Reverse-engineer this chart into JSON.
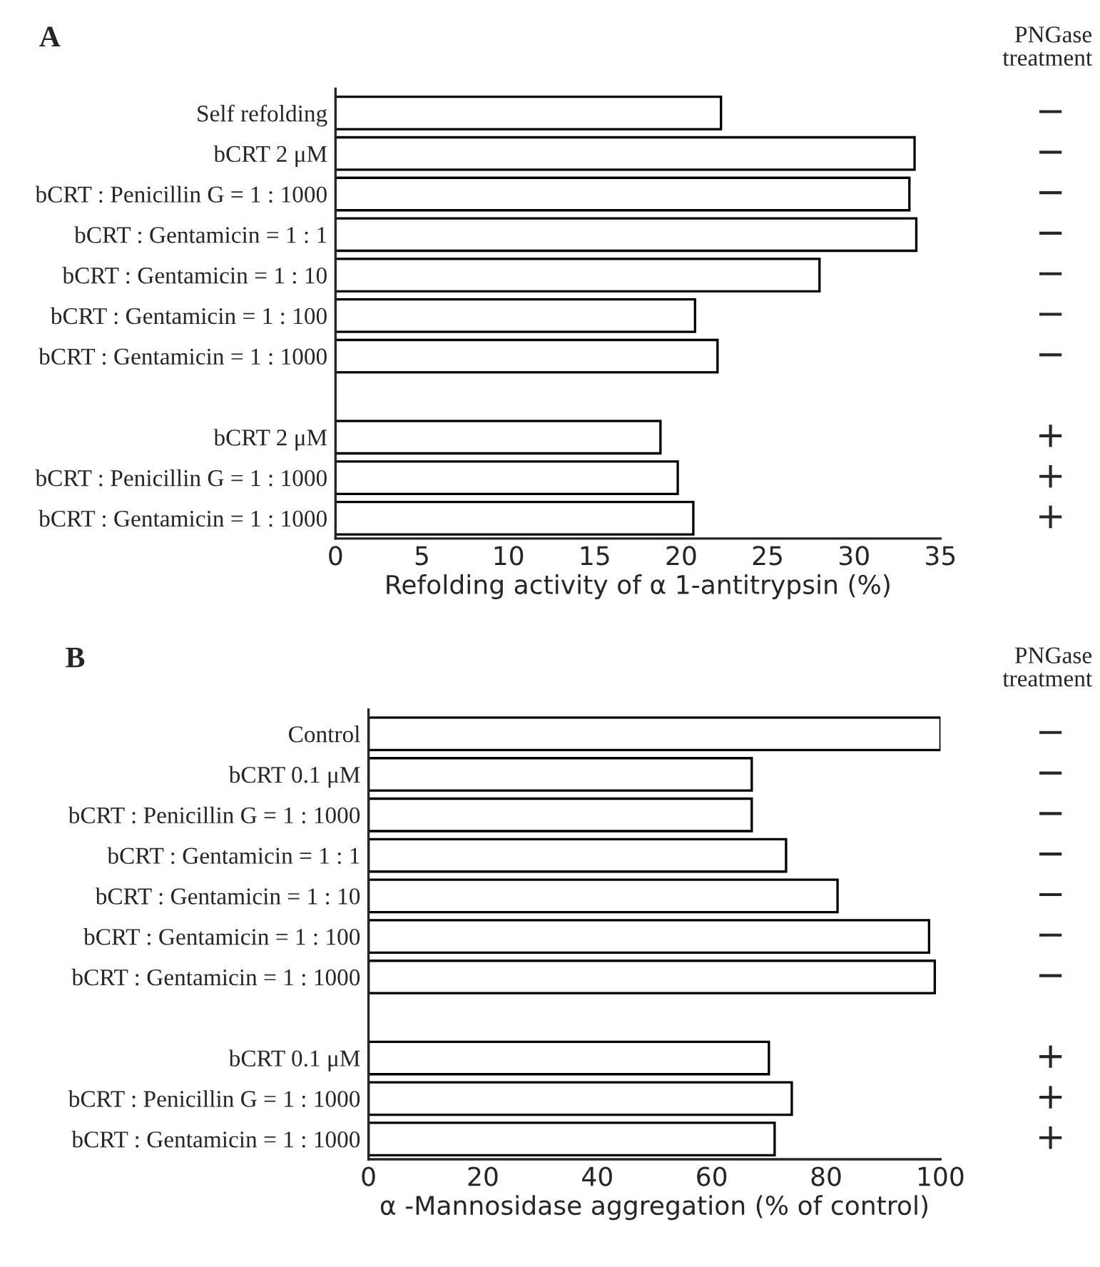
{
  "chart_data": [
    {
      "type": "bar",
      "orientation": "horizontal",
      "title": "A",
      "xlabel": "Refolding activity of α 1-antitrypsin (%)",
      "categories": [
        "Self refolding",
        "bCRT 2 μM",
        "bCRT : Penicillin G = 1 : 1000",
        "bCRT : Gentamicin = 1 : 1",
        "bCRT : Gentamicin = 1 : 10",
        "bCRT : Gentamicin = 1 : 100",
        "bCRT : Gentamicin = 1 : 1000",
        null,
        "bCRT 2 μM",
        "bCRT : Penicillin G = 1 : 1000",
        "bCRT : Gentamicin = 1 : 1000"
      ],
      "values": [
        22.3,
        33.5,
        33.2,
        33.6,
        28.0,
        20.8,
        22.1,
        null,
        18.8,
        19.8,
        20.7
      ],
      "color": "#ffffff",
      "xlim": [
        0,
        35
      ],
      "xticks": [
        0,
        5,
        10,
        15,
        20,
        25,
        30,
        35
      ],
      "grid": false,
      "legend": false,
      "annotations": [
        "PNGase\ntreatment",
        "−",
        "−",
        "−",
        "−",
        "−",
        "−",
        "−",
        "+",
        "+",
        "+"
      ]
    },
    {
      "type": "bar",
      "orientation": "horizontal",
      "title": "B",
      "xlabel": "α -Mannosidase aggregation (% of control)",
      "categories": [
        "Control",
        "bCRT 0.1 μM",
        "bCRT : Penicillin G = 1 : 1000",
        "bCRT : Gentamicin = 1 : 1",
        "bCRT : Gentamicin = 1 : 10",
        "bCRT : Gentamicin = 1 : 100",
        "bCRT : Gentamicin = 1 : 1000",
        null,
        "bCRT 0.1 μM",
        "bCRT : Penicillin G = 1 : 1000",
        "bCRT : Gentamicin = 1 : 1000"
      ],
      "values": [
        100,
        67,
        67,
        73,
        82,
        98,
        99,
        null,
        70,
        74,
        71
      ],
      "color": "#ffffff",
      "xlim": [
        0,
        100
      ],
      "xticks": [
        0,
        20,
        40,
        60,
        80,
        100
      ],
      "grid": false,
      "legend": false,
      "annotations": [
        "PNGase\ntreatment",
        "−",
        "−",
        "−",
        "−",
        "−",
        "−",
        "−",
        "+",
        "+",
        "+"
      ]
    }
  ]
}
